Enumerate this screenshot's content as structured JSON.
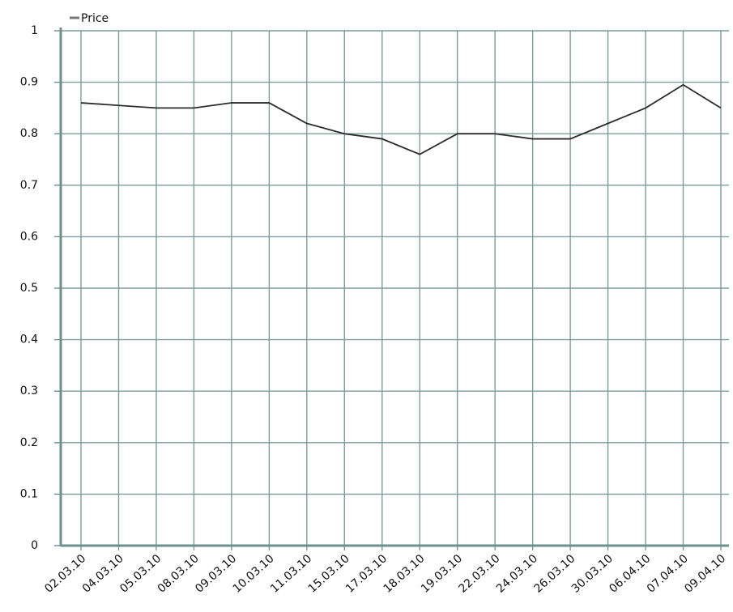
{
  "chart_data": {
    "type": "line",
    "categories": [
      "02.03.10",
      "04.03.10",
      "05.03.10",
      "08.03.10",
      "09.03.10",
      "10.03.10",
      "11.03.10",
      "15.03.10",
      "17.03.10",
      "18.03.10",
      "19.03.10",
      "22.03.10",
      "24.03.10",
      "26.03.10",
      "30.03.10",
      "06.04.10",
      "07.04.10",
      "09.04.10"
    ],
    "series": [
      {
        "name": "Price",
        "color": "#2b2b2b",
        "values": [
          0.86,
          0.855,
          0.85,
          0.85,
          0.86,
          0.86,
          0.82,
          0.8,
          0.79,
          0.76,
          0.8,
          0.8,
          0.79,
          0.79,
          0.82,
          0.85,
          0.895,
          0.85
        ]
      }
    ],
    "ylim": [
      0,
      1
    ],
    "yticks": [
      0,
      0.1,
      0.2,
      0.3,
      0.4,
      0.5,
      0.6,
      0.7,
      0.8,
      0.9,
      1
    ],
    "grid": true,
    "legend": "top-left"
  }
}
